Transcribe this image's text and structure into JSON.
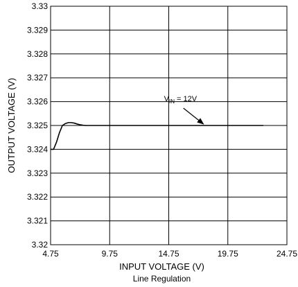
{
  "chart_data": {
    "type": "line",
    "xlabel": "INPUT VOLTAGE (V)",
    "ylabel": "OUTPUT VOLTAGE (V)",
    "caption": "Line Regulation",
    "xlim": [
      4.75,
      24.75
    ],
    "ylim": [
      3.32,
      3.33
    ],
    "x_ticks": [
      "4.75",
      "9.75",
      "14.75",
      "19.75",
      "24.75"
    ],
    "y_ticks": [
      "3.32",
      "3.321",
      "3.322",
      "3.323",
      "3.324",
      "3.325",
      "3.326",
      "3.327",
      "3.328",
      "3.329",
      "3.33"
    ],
    "grid": true,
    "series": [
      {
        "x": [
          4.75,
          5.0,
          5.25,
          5.5,
          5.75,
          6.0,
          6.25,
          6.5,
          6.75,
          7.0,
          7.25,
          7.5,
          7.75,
          8.0,
          8.25,
          8.75,
          10.0,
          12.0,
          15.0,
          18.0,
          21.0,
          22.75
        ],
        "y": [
          3.324,
          3.324,
          3.3243,
          3.3247,
          3.325,
          3.32508,
          3.32512,
          3.32512,
          3.3251,
          3.32506,
          3.32503,
          3.32501,
          3.325,
          3.325,
          3.325,
          3.325,
          3.325,
          3.325,
          3.325,
          3.325,
          3.325,
          3.325
        ]
      }
    ],
    "annotations": [
      {
        "label_main": "V",
        "label_sub": "IN",
        "label_rest": " = 12V",
        "arrow_target": {
          "x": 17.75,
          "y": 3.325
        }
      }
    ]
  }
}
